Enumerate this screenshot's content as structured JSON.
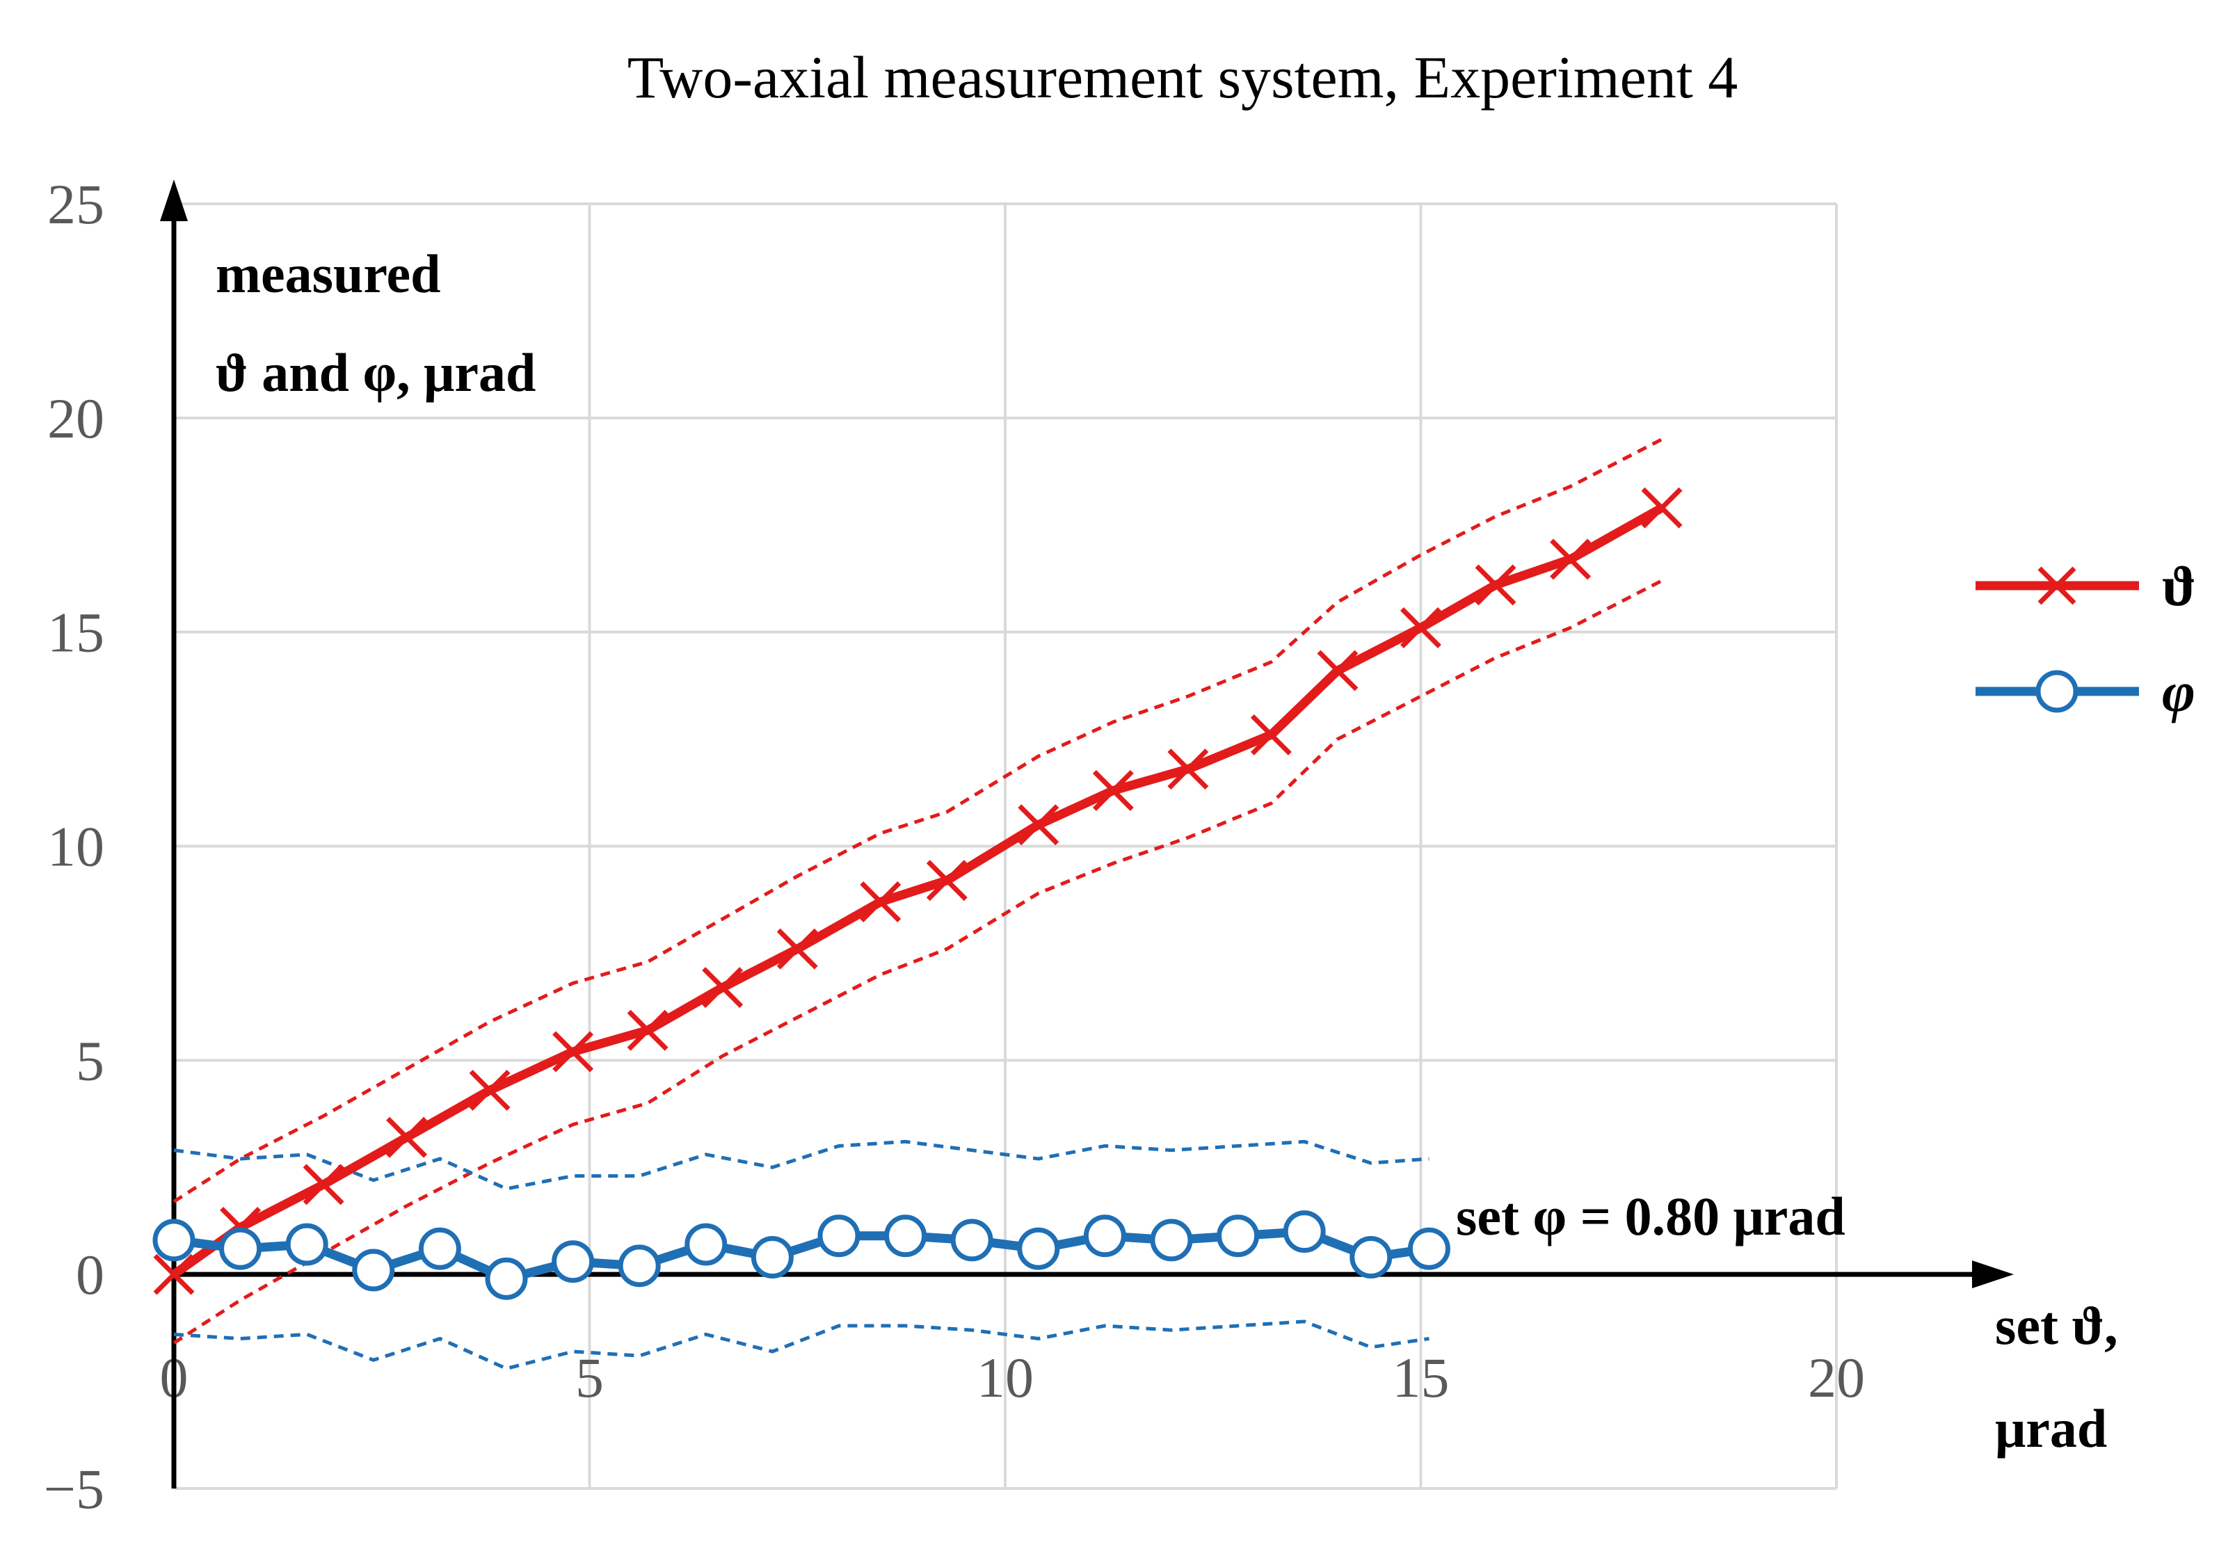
{
  "chart_data": {
    "type": "line",
    "title": "Two-axial measurement system, Experiment 4",
    "ylabel_line1": "measured",
    "ylabel_line2": "ϑ and φ, μrad",
    "xlabel_line1": "set ϑ,",
    "xlabel_line2": "μrad",
    "xlim": [
      0,
      20
    ],
    "ylim": [
      -5,
      25
    ],
    "xticks": [
      0,
      5,
      10,
      15,
      20
    ],
    "yticks": [
      -5,
      0,
      5,
      10,
      15,
      20,
      25
    ],
    "tick_labels_y": [
      "−5",
      "0",
      "5",
      "10",
      "15",
      "20",
      "25"
    ],
    "tick_labels_x": [
      "0",
      "5",
      "10",
      "15",
      "20"
    ],
    "grid": true,
    "legend_position": "right",
    "annotation": "set φ = 0.80 μrad",
    "colors": {
      "theta": "#e31b1b",
      "phi": "#1f6fb5",
      "grid": "#d9d9d9",
      "axis": "#000000"
    },
    "series": [
      {
        "name": "ϑ",
        "marker": "x",
        "x": [
          0,
          0.8,
          1.8,
          2.8,
          3.8,
          4.8,
          5.7,
          6.6,
          7.5,
          8.5,
          9.3,
          10.4,
          11.3,
          12.2,
          13.2,
          14.0,
          15.0,
          15.9,
          16.8,
          17.9
        ],
        "y": [
          0,
          1.1,
          2.1,
          3.2,
          4.3,
          5.2,
          5.7,
          6.7,
          7.6,
          8.7,
          9.2,
          10.5,
          11.3,
          11.8,
          12.6,
          14.1,
          15.1,
          16.1,
          16.7,
          17.9
        ],
        "upper": [
          1.7,
          2.7,
          3.7,
          4.8,
          5.9,
          6.8,
          7.3,
          8.3,
          9.3,
          10.3,
          10.8,
          12.1,
          12.9,
          13.5,
          14.3,
          15.7,
          16.8,
          17.7,
          18.4,
          19.5
        ],
        "lower": [
          -1.6,
          -0.6,
          0.5,
          1.6,
          2.6,
          3.5,
          4.0,
          5.1,
          6.0,
          7.0,
          7.6,
          8.9,
          9.6,
          10.2,
          11.0,
          12.5,
          13.5,
          14.4,
          15.1,
          16.2
        ]
      },
      {
        "name": "φ",
        "marker": "o",
        "x": [
          0,
          0.8,
          1.6,
          2.4,
          3.2,
          4.0,
          4.8,
          5.6,
          6.4,
          7.2,
          8.0,
          8.8,
          9.6,
          10.4,
          11.2,
          12.0,
          12.8,
          13.6,
          14.4,
          15.1
        ],
        "y": [
          0.8,
          0.6,
          0.7,
          0.1,
          0.6,
          -0.1,
          0.3,
          0.2,
          0.7,
          0.4,
          0.9,
          0.9,
          0.8,
          0.6,
          0.9,
          0.8,
          0.9,
          1.0,
          0.4,
          0.6
        ],
        "upper": [
          2.9,
          2.7,
          2.8,
          2.2,
          2.7,
          2.0,
          2.3,
          2.3,
          2.8,
          2.5,
          3.0,
          3.1,
          2.9,
          2.7,
          3.0,
          2.9,
          3.0,
          3.1,
          2.6,
          2.7
        ],
        "lower": [
          -1.4,
          -1.5,
          -1.4,
          -2.0,
          -1.5,
          -2.2,
          -1.8,
          -1.9,
          -1.4,
          -1.8,
          -1.2,
          -1.2,
          -1.3,
          -1.5,
          -1.2,
          -1.3,
          -1.2,
          -1.1,
          -1.7,
          -1.5
        ]
      }
    ]
  }
}
